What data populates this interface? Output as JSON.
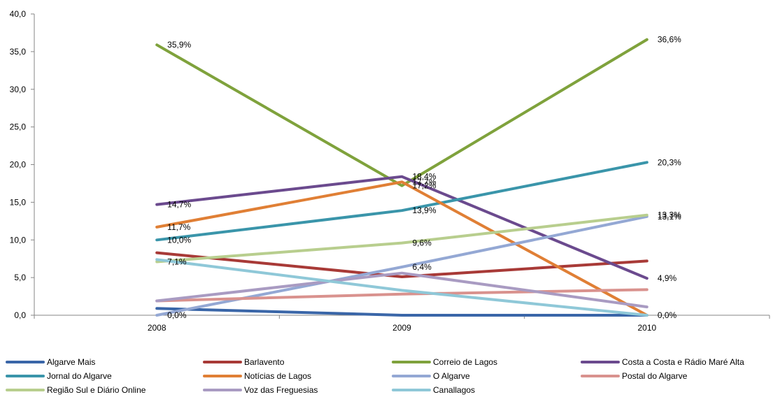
{
  "chart_data": {
    "type": "line",
    "title": "",
    "xlabel": "",
    "ylabel": "",
    "categories": [
      "2008",
      "2009",
      "2010"
    ],
    "ylim": [
      0,
      40
    ],
    "yticks": [
      "0,0",
      "5,0",
      "10,0",
      "15,0",
      "20,0",
      "25,0",
      "30,0",
      "35,0",
      "40,0"
    ],
    "grid": false,
    "legend_position": "bottom",
    "series": [
      {
        "name": "Algarve Mais",
        "color": "#3A66A8",
        "values": [
          0.9,
          0.0,
          0.0
        ],
        "labels": [
          "",
          "",
          ""
        ]
      },
      {
        "name": "Barlavento",
        "color": "#A83A37",
        "values": [
          8.3,
          5.1,
          7.2
        ],
        "labels": [
          "",
          "",
          ""
        ]
      },
      {
        "name": "Correio de Lagos",
        "color": "#7FA23C",
        "values": [
          35.9,
          17.2,
          36.6
        ],
        "labels": [
          "35,9%",
          "17,2%",
          "36,6%"
        ]
      },
      {
        "name": "Costa a Costa e Rádio Maré Alta",
        "color": "#6B4A8E",
        "values": [
          14.7,
          18.4,
          4.9
        ],
        "labels": [
          "14,7%",
          "18,4%",
          "4,9%"
        ]
      },
      {
        "name": "Jornal do Algarve",
        "color": "#3A95AA",
        "values": [
          10.0,
          13.9,
          20.3
        ],
        "labels": [
          "10,0%",
          "13,9%",
          "20,3%"
        ]
      },
      {
        "name": "Notícias de Lagos",
        "color": "#E07F35",
        "values": [
          11.7,
          17.7,
          0.0
        ],
        "labels": [
          "11,7%",
          "17,7%",
          "0,0%"
        ]
      },
      {
        "name": "O Algarve",
        "color": "#94A8D4",
        "values": [
          0.0,
          6.4,
          13.1
        ],
        "labels": [
          "0,0%",
          "6,4%",
          "13,1%"
        ]
      },
      {
        "name": "Postal do Algarve",
        "color": "#D9928E",
        "values": [
          1.9,
          2.8,
          3.4
        ],
        "labels": [
          "",
          "",
          ""
        ]
      },
      {
        "name": "Região Sul e Diário Online",
        "color": "#B8CE8E",
        "values": [
          7.1,
          9.6,
          13.3
        ],
        "labels": [
          "7,1%",
          "9,6%",
          "13,3%"
        ]
      },
      {
        "name": "Voz das Freguesias",
        "color": "#A99BC2",
        "values": [
          1.9,
          5.6,
          1.1
        ],
        "labels": [
          "",
          "",
          ""
        ]
      },
      {
        "name": "Canallagos",
        "color": "#8FC8D8",
        "values": [
          7.4,
          3.3,
          0.0
        ],
        "labels": [
          "",
          "",
          ""
        ]
      }
    ]
  }
}
